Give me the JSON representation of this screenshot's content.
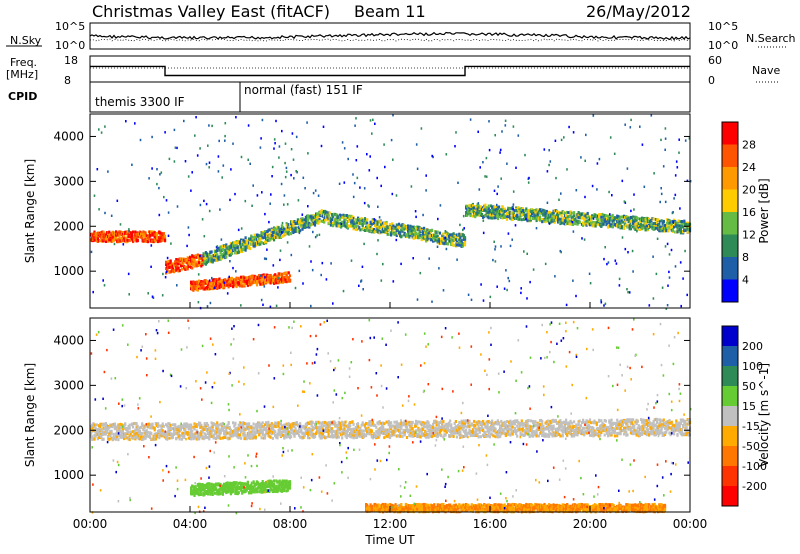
{
  "header": {
    "title": "Christmas Valley East (fitACF)",
    "beam": "Beam 11",
    "date": "26/May/2012"
  },
  "status_panels": {
    "nsky_label": "N.Sky",
    "nsearch_label": "N.Search",
    "noise_ticks": [
      "10^5",
      "10^0"
    ],
    "freq_label": "Freq.",
    "freq_unit": "[MHz]",
    "freq_ticks": [
      "18",
      "8"
    ],
    "nave_label": "Nave",
    "nave_ticks": [
      "60",
      "0"
    ],
    "cpid_label": "CPID",
    "cpid_segments": [
      {
        "label": "themis 3300 IF",
        "start_hour": 0
      },
      {
        "label": "normal (fast) 151 IF",
        "start_hour": 6
      }
    ],
    "freq_steps": [
      {
        "start": 0,
        "end": 3.0,
        "mhz": 14.0
      },
      {
        "start": 3.0,
        "end": 15.0,
        "mhz": 10.5
      },
      {
        "start": 15.0,
        "end": 24.0,
        "mhz": 14.0
      }
    ]
  },
  "power_panel": {
    "ylabel": "Slant Range [km]",
    "yticks": [
      1000,
      2000,
      3000,
      4000
    ],
    "colorbar_label": "Power [dB]",
    "colorbar_ticks": [
      "28",
      "24",
      "20",
      "16",
      "12",
      "8",
      "4"
    ],
    "colorbar_colors": [
      "#ff0000",
      "#ff5500",
      "#ff9900",
      "#ffcc00",
      "#66bb44",
      "#2e8b57",
      "#1f5fa8",
      "#0000ff"
    ]
  },
  "velocity_panel": {
    "ylabel": "Slant Range [km]",
    "yticks": [
      1000,
      2000,
      3000,
      4000
    ],
    "colorbar_label": "Velocity [m s^-1]",
    "colorbar_ticks": [
      "200",
      "100",
      "50",
      "15",
      "-15",
      "-50",
      "-100",
      "-200"
    ],
    "colorbar_colors": [
      "#0000cc",
      "#1f5fa8",
      "#2e8b57",
      "#66cc33",
      "#c0c0c0",
      "#ffaa00",
      "#ff7700",
      "#ff3300",
      "#ff0000"
    ]
  },
  "x_axis": {
    "label": "Time UT",
    "ticks": [
      "00:00",
      "04:00",
      "08:00",
      "12:00",
      "16:00",
      "20:00",
      "00:00"
    ]
  },
  "chart_data": {
    "type": "heatmap",
    "x_range_hours": [
      0,
      24
    ],
    "y_range_km": [
      180,
      4500
    ],
    "power_features": [
      {
        "name": "band",
        "t0": 0,
        "t1": 3,
        "r0": 1800,
        "r1": 1800,
        "w": 160,
        "level": "high"
      },
      {
        "name": "band",
        "t0": 3,
        "t1": 4.5,
        "r0": 1100,
        "r1": 1300,
        "w": 200,
        "level": "high"
      },
      {
        "name": "band",
        "t0": 4.5,
        "t1": 9.5,
        "r0": 1300,
        "r1": 2300,
        "w": 200,
        "level": "mid"
      },
      {
        "name": "band",
        "t0": 9.5,
        "t1": 15,
        "r0": 2200,
        "r1": 1700,
        "w": 200,
        "level": "mid"
      },
      {
        "name": "band",
        "t0": 15,
        "t1": 24,
        "r0": 2400,
        "r1": 2000,
        "w": 200,
        "level": "mid"
      },
      {
        "name": "band",
        "t0": 4,
        "t1": 8,
        "r0": 700,
        "r1": 900,
        "w": 150,
        "level": "high"
      }
    ],
    "velocity_features": [
      {
        "name": "band",
        "t0": 0,
        "t1": 24,
        "r0": 2000,
        "r1": 2100,
        "w": 260,
        "level": "low"
      },
      {
        "name": "band",
        "t0": 4,
        "t1": 8,
        "r0": 700,
        "r1": 800,
        "w": 180,
        "level": "positive"
      },
      {
        "name": "band",
        "t0": 11,
        "t1": 23,
        "r0": 300,
        "r1": 300,
        "w": 120,
        "level": "negative"
      }
    ]
  }
}
